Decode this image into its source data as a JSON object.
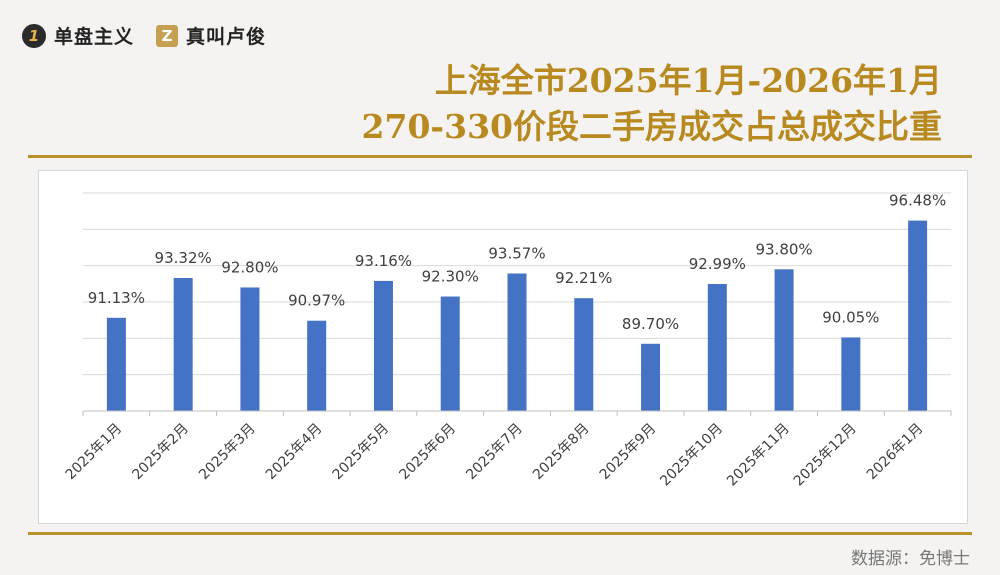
{
  "brand": {
    "logo1_mark": "1",
    "logo1_text": "单盘主义",
    "logo2_mark": "Z",
    "logo2_text": "真叫卢俊"
  },
  "title": {
    "line1": "上海全市2025年1月-2026年1月",
    "line2": "270-330价段二手房成交占总成交比重"
  },
  "source": "数据源：免博士",
  "colors": {
    "bar": "#4472c4",
    "gold": "#b8891f",
    "grid": "#d9d9d9"
  },
  "chart_data": {
    "type": "bar",
    "title": "上海全市2025年1月-2026年1月 270-330价段二手房成交占总成交比重",
    "categories": [
      "2025年1月",
      "2025年2月",
      "2025年3月",
      "2025年4月",
      "2025年5月",
      "2025年6月",
      "2025年7月",
      "2025年8月",
      "2025年9月",
      "2025年10月",
      "2025年11月",
      "2025年12月",
      "2026年1月"
    ],
    "values": [
      91.13,
      93.32,
      92.8,
      90.97,
      93.16,
      92.3,
      93.57,
      92.21,
      89.7,
      92.99,
      93.8,
      90.05,
      96.48
    ],
    "labels": [
      "91.13%",
      "93.32%",
      "92.80%",
      "90.97%",
      "93.16%",
      "92.30%",
      "93.57%",
      "92.21%",
      "89.70%",
      "92.99%",
      "93.80%",
      "90.05%",
      "96.48%"
    ],
    "ylim": [
      86,
      98
    ],
    "unit": "%",
    "grid": true,
    "legend": "none"
  }
}
